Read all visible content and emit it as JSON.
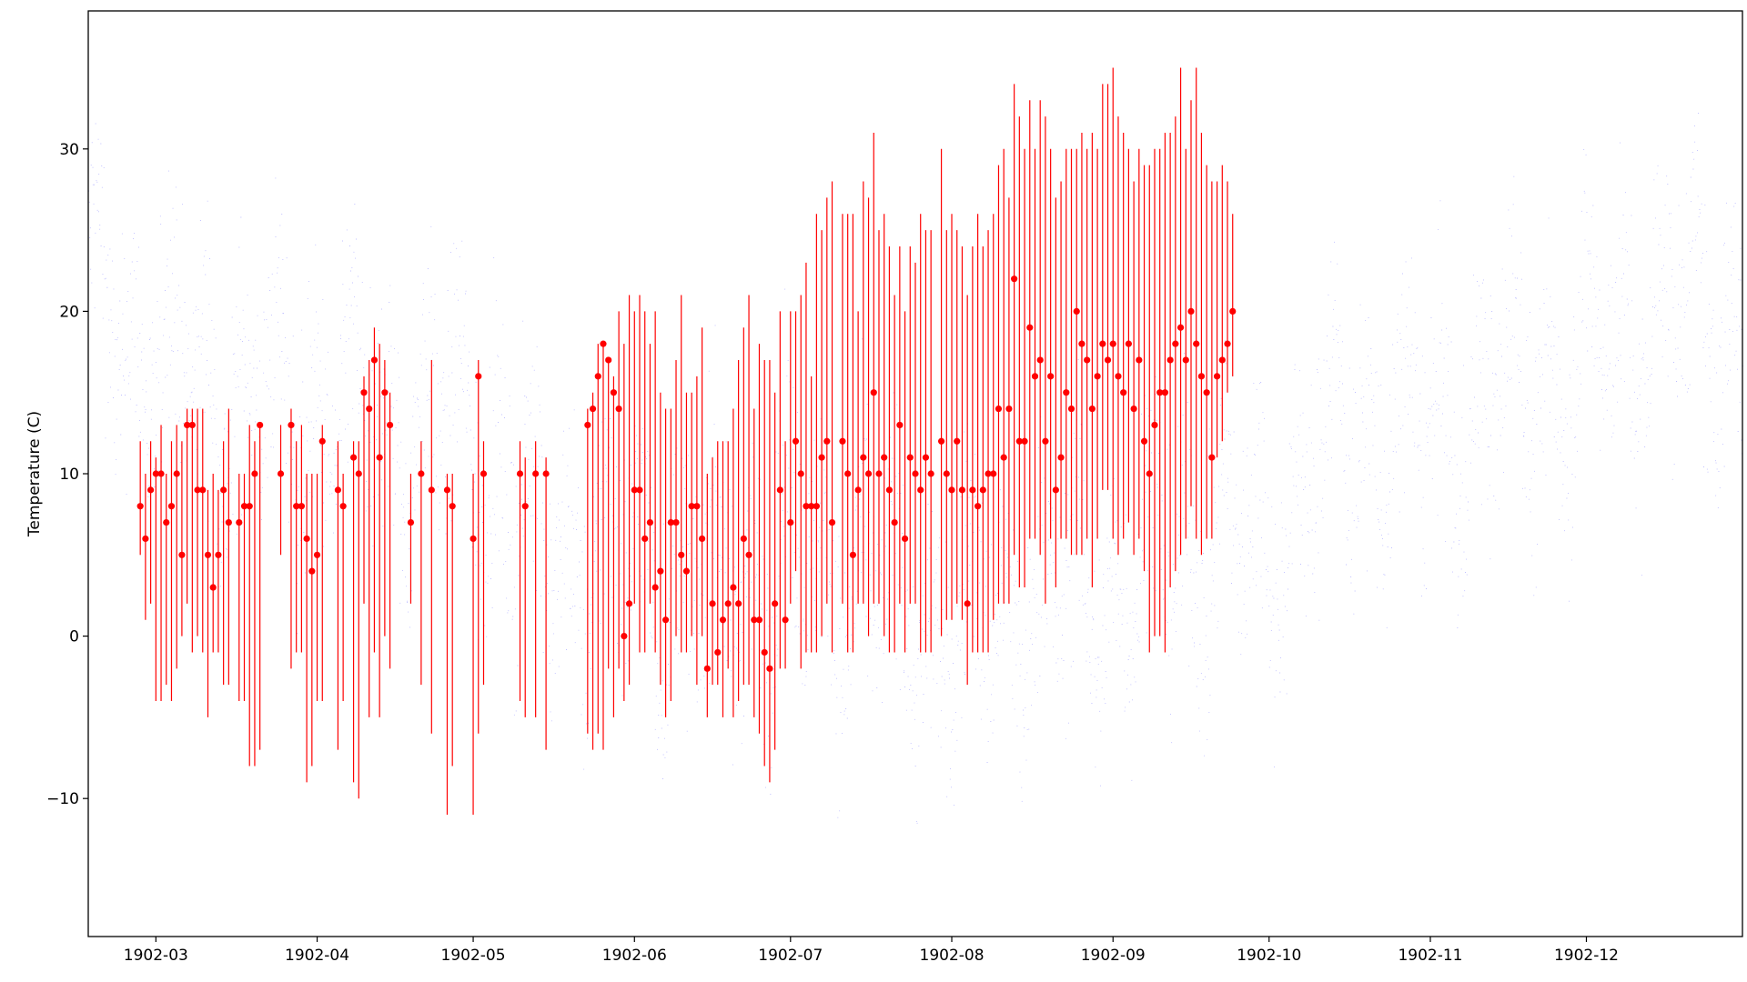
{
  "chart_data": {
    "type": "scatter",
    "title": "",
    "xlabel": "",
    "ylabel": "Temperature (C)",
    "xlim": [
      "1902-02-16",
      "1902-12-31"
    ],
    "ylim": [
      -18.5,
      38.5
    ],
    "grid": false,
    "legend": "none",
    "x_ticks": [
      "1902-03",
      "1902-04",
      "1902-05",
      "1902-06",
      "1902-07",
      "1902-08",
      "1902-09",
      "1902-10",
      "1902-11",
      "1902-12"
    ],
    "y_ticks": [
      -10,
      0,
      10,
      20,
      30
    ],
    "series": [
      {
        "kind": "dense-scatter",
        "color": "#0000ff",
        "x_range": [
          "1902-02-16",
          "1902-12-31"
        ],
        "daily_mean_profile": [
          [
            "1902-02-16",
            21
          ],
          [
            "1902-03-01",
            17
          ],
          [
            "1902-03-15",
            15
          ],
          [
            "1902-04-01",
            14
          ],
          [
            "1902-04-15",
            13
          ],
          [
            "1902-05-01",
            13
          ],
          [
            "1902-05-15",
            5
          ],
          [
            "1902-06-01",
            5
          ],
          [
            "1902-06-15",
            3
          ],
          [
            "1902-07-01",
            5
          ],
          [
            "1902-07-15",
            3
          ],
          [
            "1902-08-01",
            0
          ],
          [
            "1902-08-15",
            2
          ],
          [
            "1902-09-01",
            3
          ],
          [
            "1902-09-15",
            6
          ],
          [
            "1902-10-01",
            6
          ],
          [
            "1902-10-15",
            13
          ],
          [
            "1902-11-01",
            12
          ],
          [
            "1902-11-15",
            15
          ],
          [
            "1902-12-01",
            17
          ],
          [
            "1902-12-15",
            20
          ],
          [
            "1902-12-31",
            19
          ]
        ]
      },
      {
        "kind": "errorbar",
        "color": "#ff0000",
        "points": [
          [
            "1902-02-26",
            8,
            5,
            12
          ],
          [
            "1902-02-27",
            6,
            1,
            10
          ],
          [
            "1902-02-28",
            9,
            2,
            12
          ],
          [
            "1902-03-01",
            10,
            -4,
            11
          ],
          [
            "1902-03-02",
            10,
            -4,
            13
          ],
          [
            "1902-03-03",
            7,
            -3,
            10
          ],
          [
            "1902-03-04",
            8,
            -4,
            12
          ],
          [
            "1902-03-05",
            10,
            -2,
            13
          ],
          [
            "1902-03-06",
            5,
            0,
            12
          ],
          [
            "1902-03-07",
            13,
            2,
            14
          ],
          [
            "1902-03-08",
            13,
            -1,
            14
          ],
          [
            "1902-03-09",
            9,
            0,
            14
          ],
          [
            "1902-03-10",
            9,
            -1,
            14
          ],
          [
            "1902-03-11",
            5,
            -5,
            9
          ],
          [
            "1902-03-12",
            3,
            -1,
            10
          ],
          [
            "1902-03-13",
            5,
            -1,
            9
          ],
          [
            "1902-03-14",
            9,
            -3,
            12
          ],
          [
            "1902-03-15",
            7,
            -3,
            14
          ],
          [
            "1902-03-17",
            7,
            -4,
            10
          ],
          [
            "1902-03-18",
            8,
            -4,
            10
          ],
          [
            "1902-03-19",
            8,
            -8,
            13
          ],
          [
            "1902-03-20",
            10,
            -8,
            12
          ],
          [
            "1902-03-21",
            13,
            -7,
            13
          ],
          [
            "1902-03-25",
            10,
            5,
            13
          ],
          [
            "1902-03-27",
            13,
            -2,
            14
          ],
          [
            "1902-03-28",
            8,
            -1,
            12
          ],
          [
            "1902-03-29",
            8,
            -1,
            13
          ],
          [
            "1902-03-30",
            6,
            -9,
            10
          ],
          [
            "1902-03-31",
            4,
            -8,
            10
          ],
          [
            "1902-04-01",
            5,
            -4,
            10
          ],
          [
            "1902-04-02",
            12,
            -4,
            13
          ],
          [
            "1902-04-05",
            9,
            -7,
            12
          ],
          [
            "1902-04-06",
            8,
            -4,
            10
          ],
          [
            "1902-04-08",
            11,
            -9,
            12
          ],
          [
            "1902-04-09",
            10,
            -10,
            12
          ],
          [
            "1902-04-10",
            15,
            2,
            16
          ],
          [
            "1902-04-11",
            14,
            -5,
            17
          ],
          [
            "1902-04-12",
            17,
            -1,
            19
          ],
          [
            "1902-04-13",
            11,
            -5,
            18
          ],
          [
            "1902-04-14",
            15,
            0,
            17
          ],
          [
            "1902-04-15",
            13,
            -2,
            15
          ],
          [
            "1902-04-19",
            7,
            2,
            10
          ],
          [
            "1902-04-21",
            10,
            -3,
            12
          ],
          [
            "1902-04-23",
            9,
            -6,
            17
          ],
          [
            "1902-04-26",
            9,
            -11,
            10
          ],
          [
            "1902-04-27",
            8,
            -8,
            10
          ],
          [
            "1902-05-01",
            6,
            -11,
            10
          ],
          [
            "1902-05-02",
            16,
            -6,
            17
          ],
          [
            "1902-05-03",
            10,
            -3,
            12
          ],
          [
            "1902-05-10",
            10,
            -4,
            12
          ],
          [
            "1902-05-11",
            8,
            -5,
            11
          ],
          [
            "1902-05-13",
            10,
            -5,
            12
          ],
          [
            "1902-05-15",
            10,
            -7,
            11
          ],
          [
            "1902-05-23",
            13,
            -6,
            14
          ],
          [
            "1902-05-24",
            14,
            -7,
            15
          ],
          [
            "1902-05-25",
            16,
            -6,
            18
          ],
          [
            "1902-05-26",
            18,
            -7,
            18
          ],
          [
            "1902-05-27",
            17,
            -2,
            17
          ],
          [
            "1902-05-28",
            15,
            -5,
            16
          ],
          [
            "1902-05-29",
            14,
            -2,
            20
          ],
          [
            "1902-05-30",
            0,
            -4,
            18
          ],
          [
            "1902-05-31",
            2,
            -3,
            21
          ],
          [
            "1902-06-01",
            9,
            2,
            20
          ],
          [
            "1902-06-02",
            9,
            -1,
            21
          ],
          [
            "1902-06-03",
            6,
            -1,
            20
          ],
          [
            "1902-06-04",
            7,
            2,
            18
          ],
          [
            "1902-06-05",
            3,
            -1,
            20
          ],
          [
            "1902-06-06",
            4,
            -3,
            15
          ],
          [
            "1902-06-07",
            1,
            -5,
            14
          ],
          [
            "1902-06-08",
            7,
            -4,
            14
          ],
          [
            "1902-06-09",
            7,
            0,
            17
          ],
          [
            "1902-06-10",
            5,
            -1,
            21
          ],
          [
            "1902-06-11",
            4,
            -1,
            15
          ],
          [
            "1902-06-12",
            8,
            0,
            15
          ],
          [
            "1902-06-13",
            8,
            -3,
            16
          ],
          [
            "1902-06-14",
            6,
            0,
            19
          ],
          [
            "1902-06-15",
            -2,
            -5,
            10
          ],
          [
            "1902-06-16",
            2,
            -3,
            11
          ],
          [
            "1902-06-17",
            -1,
            -3,
            12
          ],
          [
            "1902-06-18",
            1,
            -5,
            12
          ],
          [
            "1902-06-19",
            2,
            -2,
            12
          ],
          [
            "1902-06-20",
            3,
            -5,
            14
          ],
          [
            "1902-06-21",
            2,
            -4,
            17
          ],
          [
            "1902-06-22",
            6,
            -3,
            19
          ],
          [
            "1902-06-23",
            5,
            -3,
            21
          ],
          [
            "1902-06-24",
            1,
            -5,
            14
          ],
          [
            "1902-06-25",
            1,
            -6,
            18
          ],
          [
            "1902-06-26",
            -1,
            -8,
            17
          ],
          [
            "1902-06-27",
            -2,
            -9,
            17
          ],
          [
            "1902-06-28",
            2,
            -7,
            15
          ],
          [
            "1902-06-29",
            9,
            -2,
            20
          ],
          [
            "1902-06-30",
            1,
            -2,
            12
          ],
          [
            "1902-07-01",
            7,
            2,
            20
          ],
          [
            "1902-07-02",
            12,
            4,
            20
          ],
          [
            "1902-07-03",
            10,
            -2,
            21
          ],
          [
            "1902-07-04",
            8,
            -1,
            23
          ],
          [
            "1902-07-05",
            8,
            -1,
            16
          ],
          [
            "1902-07-06",
            8,
            -1,
            26
          ],
          [
            "1902-07-07",
            11,
            0,
            25
          ],
          [
            "1902-07-08",
            12,
            2,
            27
          ],
          [
            "1902-07-09",
            7,
            -1,
            28
          ],
          [
            "1902-07-11",
            12,
            2,
            26
          ],
          [
            "1902-07-12",
            10,
            -1,
            26
          ],
          [
            "1902-07-13",
            5,
            -1,
            26
          ],
          [
            "1902-07-14",
            9,
            2,
            20
          ],
          [
            "1902-07-15",
            11,
            2,
            28
          ],
          [
            "1902-07-16",
            10,
            0,
            27
          ],
          [
            "1902-07-17",
            15,
            2,
            31
          ],
          [
            "1902-07-18",
            10,
            2,
            25
          ],
          [
            "1902-07-19",
            11,
            0,
            26
          ],
          [
            "1902-07-20",
            9,
            -1,
            24
          ],
          [
            "1902-07-21",
            7,
            -1,
            21
          ],
          [
            "1902-07-22",
            13,
            2,
            24
          ],
          [
            "1902-07-23",
            6,
            -1,
            20
          ],
          [
            "1902-07-24",
            11,
            2,
            24
          ],
          [
            "1902-07-25",
            10,
            2,
            23
          ],
          [
            "1902-07-26",
            9,
            -1,
            26
          ],
          [
            "1902-07-27",
            11,
            -1,
            25
          ],
          [
            "1902-07-28",
            10,
            -1,
            25
          ],
          [
            "1902-07-30",
            12,
            0,
            30
          ],
          [
            "1902-07-31",
            10,
            1,
            25
          ],
          [
            "1902-08-01",
            9,
            1,
            26
          ],
          [
            "1902-08-02",
            12,
            2,
            25
          ],
          [
            "1902-08-03",
            9,
            1,
            24
          ],
          [
            "1902-08-04",
            2,
            -3,
            21
          ],
          [
            "1902-08-05",
            9,
            -1,
            24
          ],
          [
            "1902-08-06",
            8,
            -1,
            26
          ],
          [
            "1902-08-07",
            9,
            -1,
            24
          ],
          [
            "1902-08-08",
            10,
            -1,
            25
          ],
          [
            "1902-08-09",
            10,
            1,
            26
          ],
          [
            "1902-08-10",
            14,
            2,
            29
          ],
          [
            "1902-08-11",
            11,
            2,
            30
          ],
          [
            "1902-08-12",
            14,
            2,
            27
          ],
          [
            "1902-08-13",
            22,
            5,
            34
          ],
          [
            "1902-08-14",
            12,
            3,
            32
          ],
          [
            "1902-08-15",
            12,
            3,
            30
          ],
          [
            "1902-08-16",
            19,
            6,
            33
          ],
          [
            "1902-08-17",
            16,
            6,
            30
          ],
          [
            "1902-08-18",
            17,
            5,
            33
          ],
          [
            "1902-08-19",
            12,
            2,
            32
          ],
          [
            "1902-08-20",
            16,
            6,
            30
          ],
          [
            "1902-08-21",
            9,
            3,
            27
          ],
          [
            "1902-08-22",
            11,
            6,
            28
          ],
          [
            "1902-08-23",
            15,
            6,
            30
          ],
          [
            "1902-08-24",
            14,
            5,
            30
          ],
          [
            "1902-08-25",
            20,
            5,
            30
          ],
          [
            "1902-08-26",
            18,
            5,
            31
          ],
          [
            "1902-08-27",
            17,
            6,
            30
          ],
          [
            "1902-08-28",
            14,
            3,
            31
          ],
          [
            "1902-08-29",
            16,
            6,
            30
          ],
          [
            "1902-08-30",
            18,
            9,
            34
          ],
          [
            "1902-08-31",
            17,
            9,
            34
          ],
          [
            "1902-09-01",
            18,
            6,
            35
          ],
          [
            "1902-09-02",
            16,
            5,
            32
          ],
          [
            "1902-09-03",
            15,
            6,
            31
          ],
          [
            "1902-09-04",
            18,
            7,
            30
          ],
          [
            "1902-09-05",
            14,
            5,
            28
          ],
          [
            "1902-09-06",
            17,
            6,
            30
          ],
          [
            "1902-09-07",
            12,
            4,
            29
          ],
          [
            "1902-09-08",
            10,
            -1,
            29
          ],
          [
            "1902-09-09",
            13,
            0,
            30
          ],
          [
            "1902-09-10",
            15,
            0,
            30
          ],
          [
            "1902-09-11",
            15,
            -1,
            31
          ],
          [
            "1902-09-12",
            17,
            3,
            31
          ],
          [
            "1902-09-13",
            18,
            4,
            32
          ],
          [
            "1902-09-14",
            19,
            5,
            35
          ],
          [
            "1902-09-15",
            17,
            6,
            30
          ],
          [
            "1902-09-16",
            20,
            8,
            33
          ],
          [
            "1902-09-17",
            18,
            6,
            35
          ],
          [
            "1902-09-18",
            16,
            5,
            31
          ],
          [
            "1902-09-19",
            15,
            6,
            29
          ],
          [
            "1902-09-20",
            11,
            6,
            28
          ],
          [
            "1902-09-21",
            16,
            11,
            28
          ],
          [
            "1902-09-22",
            17,
            12,
            29
          ],
          [
            "1902-09-23",
            18,
            15,
            28
          ],
          [
            "1902-09-24",
            20,
            16,
            26
          ]
        ]
      }
    ]
  }
}
